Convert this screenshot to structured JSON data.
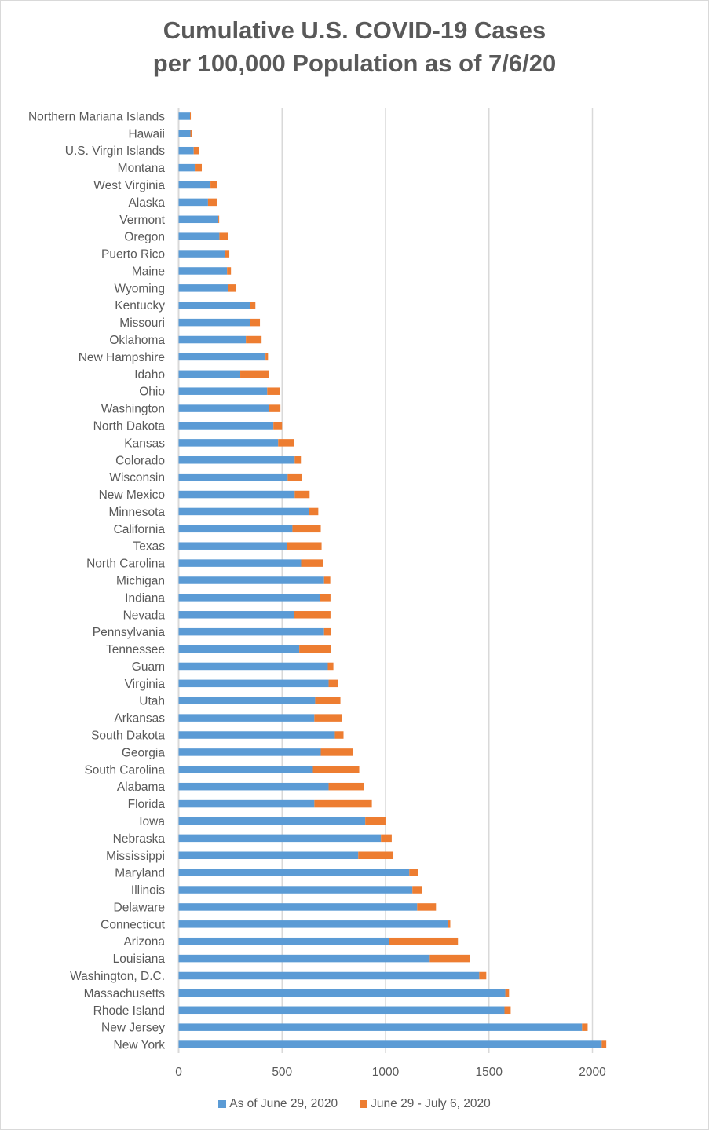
{
  "chart_data": {
    "type": "bar",
    "orientation": "horizontal",
    "stacked": true,
    "title": "Cumulative U.S. COVID-19 Cases per 100,000 Population as of 7/6/20",
    "title_lines": [
      "Cumulative U.S. COVID-19 Cases",
      "per 100,000 Population as of 7/6/20"
    ],
    "xlabel": "",
    "ylabel": "",
    "xlim": [
      0,
      2100
    ],
    "xticks": [
      0,
      500,
      1000,
      1500,
      2000
    ],
    "xtick_labels": [
      "0",
      "500",
      "1000",
      "1500",
      "2000"
    ],
    "grid": true,
    "legend_position": "bottom",
    "categories": [
      "Northern Mariana Islands",
      "Hawaii",
      "U.S. Virgin Islands",
      "Montana",
      "West Virginia",
      "Alaska",
      "Vermont",
      "Oregon",
      "Puerto Rico",
      "Maine",
      "Wyoming",
      "Kentucky",
      "Missouri",
      "Oklahoma",
      "New Hampshire",
      "Idaho",
      "Ohio",
      "Washington",
      "North Dakota",
      "Kansas",
      "Colorado",
      "Wisconsin",
      "New Mexico",
      "Minnesota",
      "California",
      "Texas",
      "North Carolina",
      "Michigan",
      "Indiana",
      "Nevada",
      "Pennsylvania",
      "Tennessee",
      "Guam",
      "Virginia",
      "Utah",
      "Arkansas",
      "South Dakota",
      "Georgia",
      "South Carolina",
      "Alabama",
      "Florida",
      "Iowa",
      "Nebraska",
      "Mississippi",
      "Maryland",
      "Illinois",
      "Delaware",
      "Connecticut",
      "Arizona",
      "Louisiana",
      "Washington, D.C.",
      "Massachusetts",
      "Rhode Island",
      "New Jersey",
      "New York"
    ],
    "series": [
      {
        "name": "As of June 29, 2020",
        "color": "#5b9bd5",
        "values": [
          55,
          57,
          73,
          78,
          154,
          142,
          192,
          197,
          222,
          234,
          241,
          344,
          344,
          325,
          420,
          298,
          428,
          435,
          458,
          481,
          561,
          527,
          561,
          629,
          550,
          524,
          592,
          703,
          684,
          558,
          703,
          583,
          721,
          725,
          660,
          656,
          755,
          687,
          649,
          725,
          656,
          902,
          978,
          868,
          1115,
          1130,
          1153,
          1301,
          1016,
          1214,
          1453,
          1579,
          1575,
          1950,
          2045
        ]
      },
      {
        "name": "June 29 - July 6, 2020",
        "color": "#ed7d31",
        "values": [
          4,
          8,
          27,
          34,
          30,
          42,
          4,
          44,
          23,
          19,
          38,
          27,
          49,
          76,
          12,
          137,
          60,
          57,
          42,
          76,
          30,
          68,
          72,
          46,
          137,
          167,
          107,
          30,
          50,
          176,
          34,
          152,
          27,
          45,
          122,
          133,
          42,
          156,
          224,
          171,
          278,
          98,
          52,
          170,
          42,
          46,
          91,
          12,
          334,
          193,
          34,
          18,
          30,
          27,
          22
        ]
      }
    ]
  }
}
